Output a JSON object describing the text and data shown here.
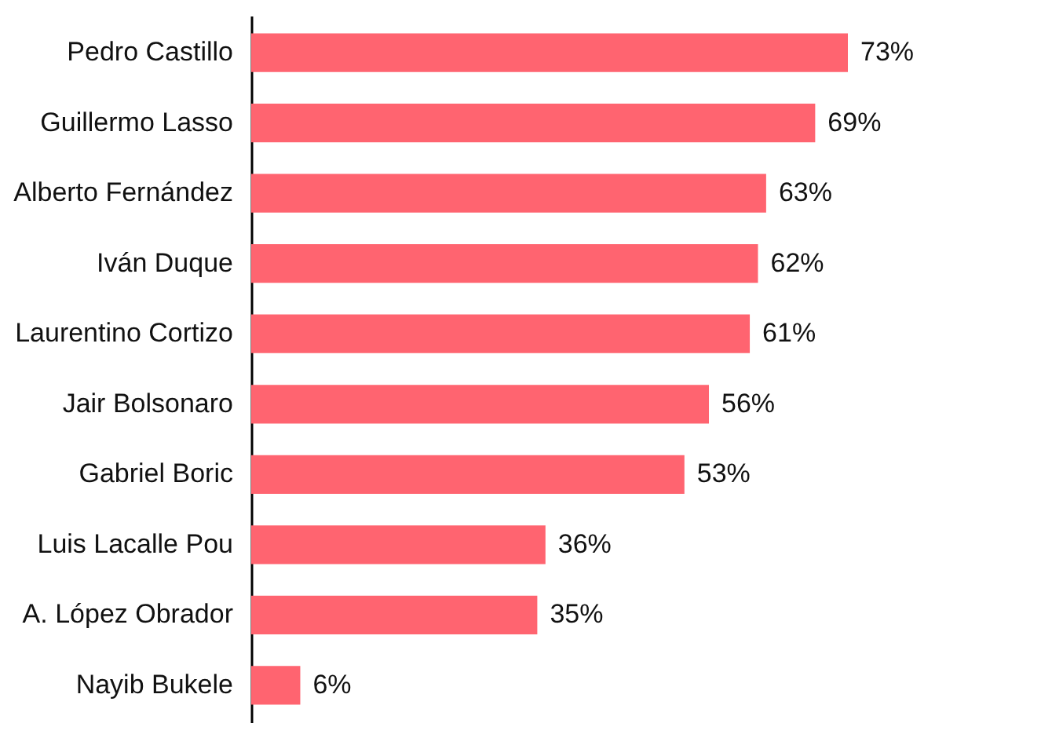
{
  "chart_data": {
    "type": "bar",
    "orientation": "horizontal",
    "categories": [
      "Pedro Castillo",
      "Guillermo Lasso",
      "Alberto Fernández",
      "Iván Duque",
      "Laurentino Cortizo",
      "Jair Bolsonaro",
      "Gabriel Boric",
      "Luis Lacalle Pou",
      "A. López Obrador",
      "Nayib Bukele"
    ],
    "values": [
      73,
      69,
      63,
      62,
      61,
      56,
      53,
      36,
      35,
      6
    ],
    "value_labels": [
      "73%",
      "69%",
      "63%",
      "62%",
      "61%",
      "56%",
      "53%",
      "36%",
      "35%",
      "6%"
    ],
    "color": "#ff6470"
  }
}
